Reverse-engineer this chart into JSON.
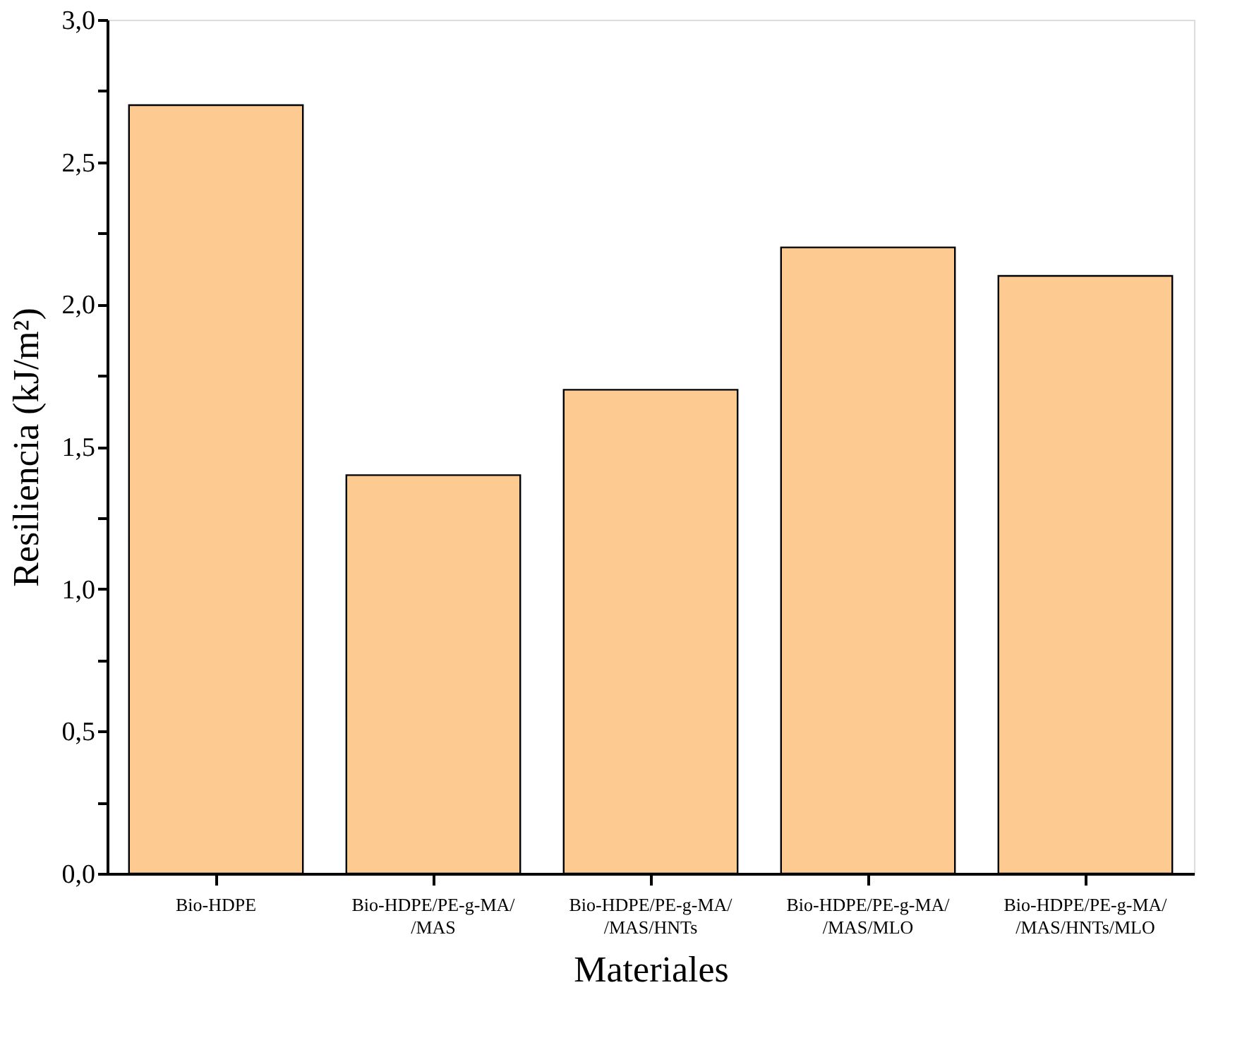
{
  "chart_data": {
    "type": "bar",
    "categories": [
      "Bio-HDPE",
      "Bio-HDPE/PE-g-MA/\n/MAS",
      "Bio-HDPE/PE-g-MA/\n/MAS/HNTs",
      "Bio-HDPE/PE-g-MA/\n/MAS/MLO",
      "Bio-HDPE/PE-g-MA/\n/MAS/HNTs/MLO"
    ],
    "values": [
      2.7,
      1.4,
      1.7,
      2.2,
      2.1
    ],
    "color": "#fdcb91",
    "xlabel": "Materiales",
    "ylabel": "Resiliencia (kJ/m²)",
    "ylim": [
      0,
      3
    ],
    "yticks": [
      {
        "value": 0,
        "label": "0,0"
      },
      {
        "value": 0.25,
        "label": null
      },
      {
        "value": 0.5,
        "label": "0,5"
      },
      {
        "value": 0.75,
        "label": null
      },
      {
        "value": 1.0,
        "label": "1,0"
      },
      {
        "value": 1.25,
        "label": null
      },
      {
        "value": 1.5,
        "label": "1,5"
      },
      {
        "value": 1.75,
        "label": null
      },
      {
        "value": 2.0,
        "label": "2,0"
      },
      {
        "value": 2.25,
        "label": null
      },
      {
        "value": 2.5,
        "label": "2,5"
      },
      {
        "value": 2.75,
        "label": null
      },
      {
        "value": 3.0,
        "label": "3,0"
      }
    ],
    "grid": false
  }
}
